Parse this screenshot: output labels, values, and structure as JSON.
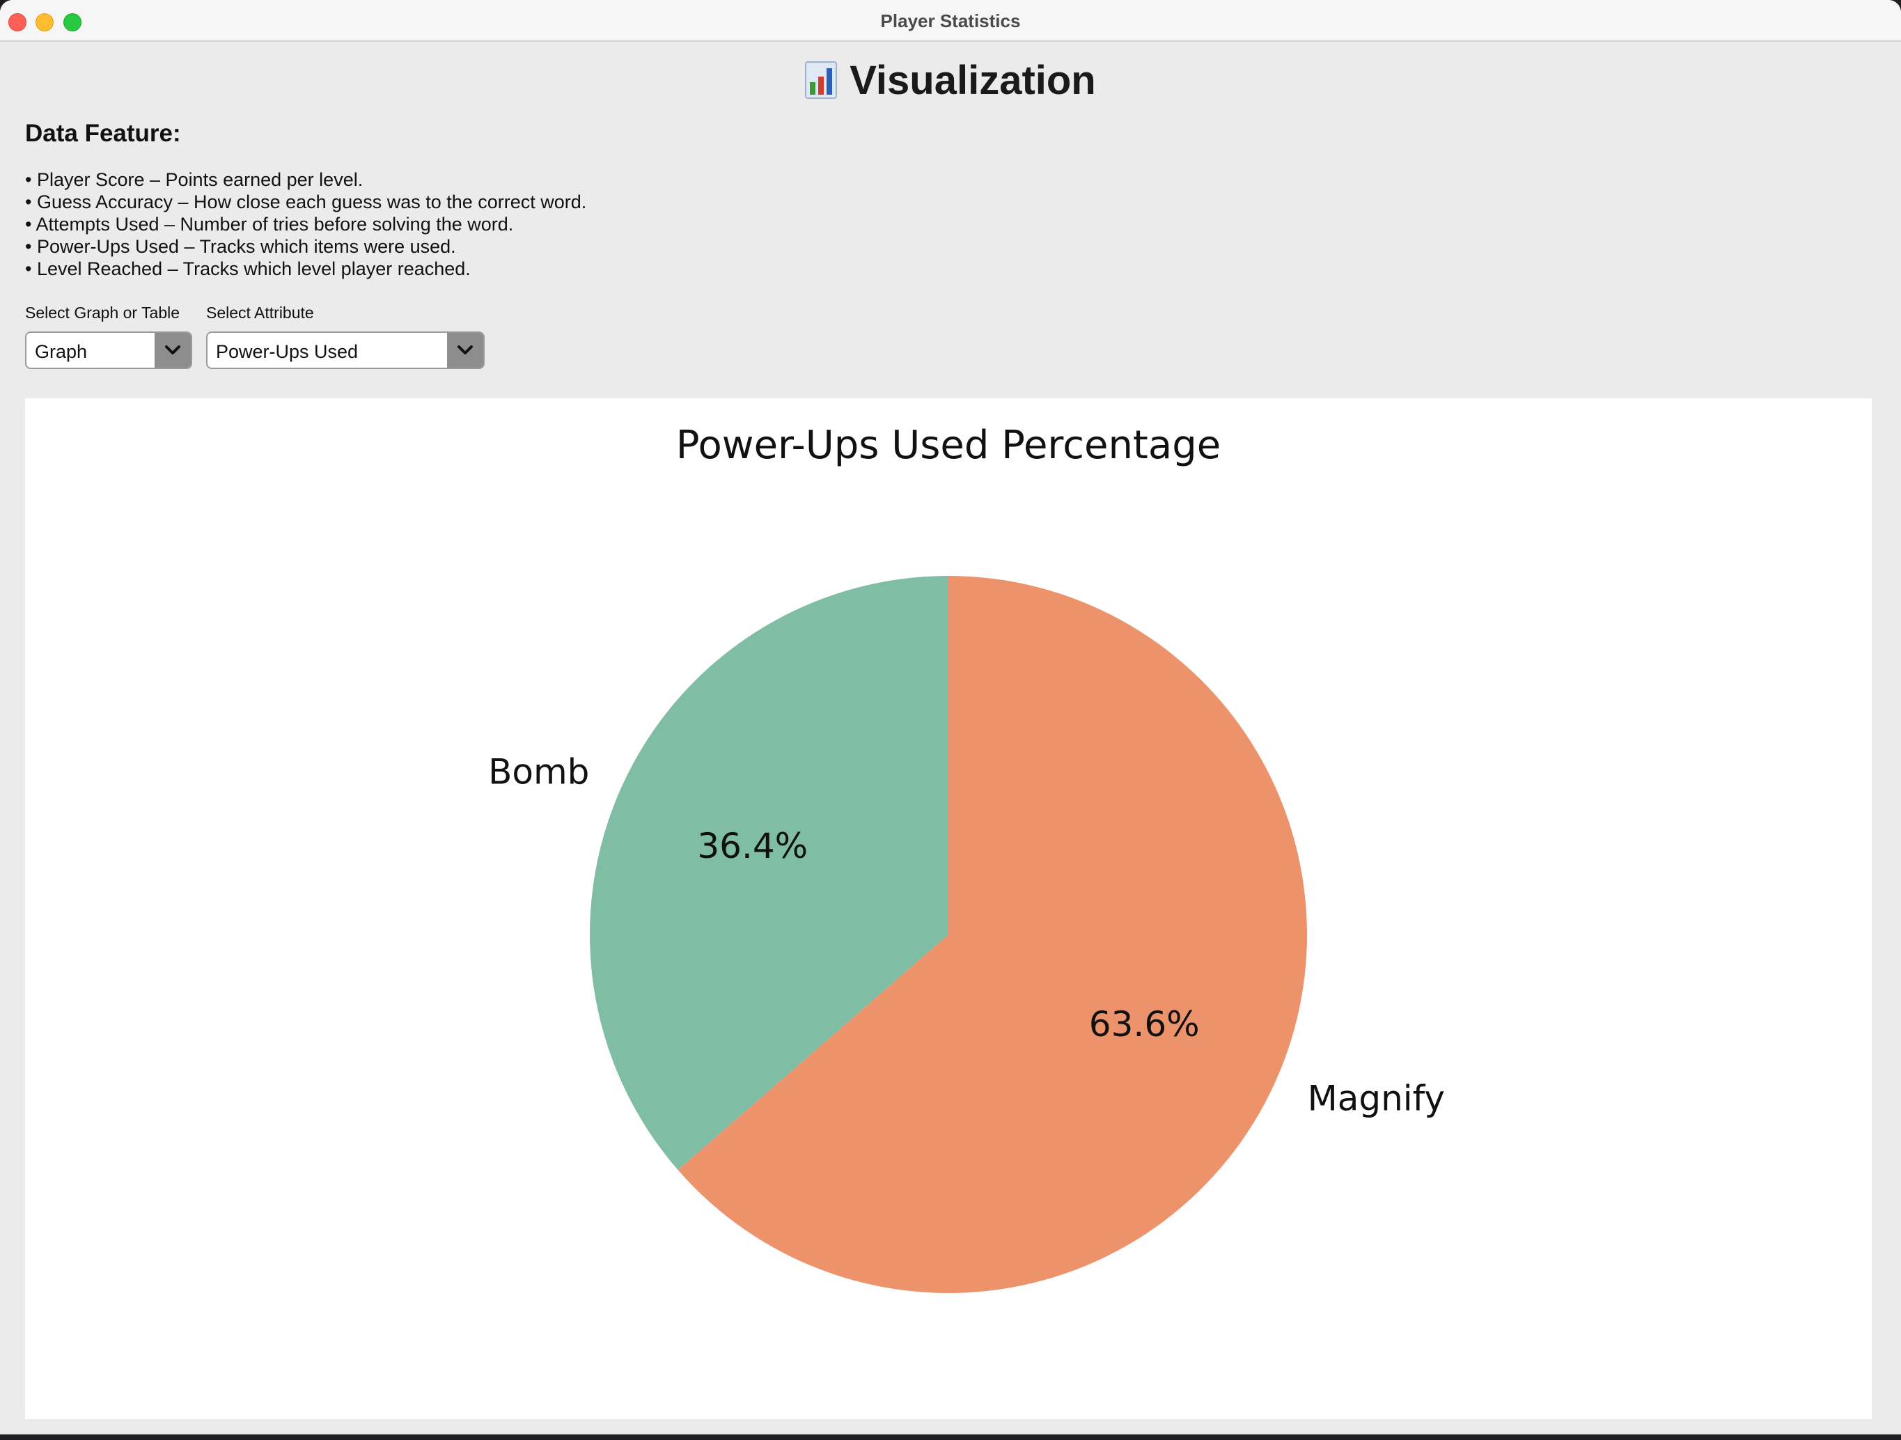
{
  "window": {
    "title": "Player Statistics"
  },
  "header": {
    "icon": "bar-chart-icon",
    "title": "Visualization"
  },
  "features": {
    "title": "Data Feature:",
    "items": [
      "• Player Score – Points earned per level.",
      "• Guess Accuracy – How close each guess was to the correct word.",
      "• Attempts Used – Number of tries before solving the word.",
      "• Power-Ups Used – Tracks which items were used.",
      "• Level Reached – Tracks which level player reached."
    ]
  },
  "controls": {
    "view_label": "Select Graph or Table",
    "view_value": "Graph",
    "attribute_label": "Select Attribute",
    "attribute_value": "Power-Ups Used"
  },
  "chart_data": {
    "type": "pie",
    "title": "Power-Ups Used Percentage",
    "categories": [
      "Magnify",
      "Bomb"
    ],
    "values": [
      63.6,
      36.4
    ],
    "value_labels": [
      "63.6%",
      "36.4%"
    ],
    "colors": [
      "#ec936c",
      "#7fbea5"
    ],
    "start_angle_deg": 90,
    "direction": "clockwise",
    "legend": "none"
  }
}
